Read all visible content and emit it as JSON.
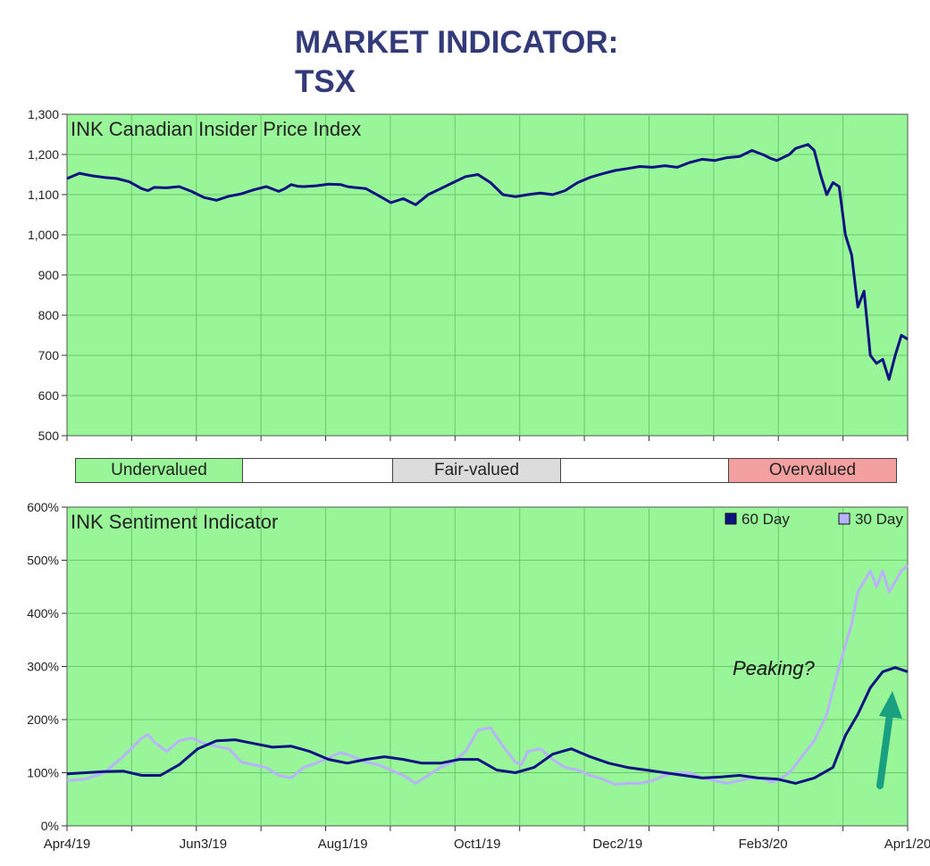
{
  "title": {
    "line1": "MARKET INDICATOR:",
    "line2": "TSX"
  },
  "colors": {
    "plot_bg": "#98f598",
    "grid": "#6cc86c",
    "series_dark": "#0d1380",
    "series_light": "#b9b2ff",
    "arrow": "#19a080",
    "undervalued": "#98f598",
    "fairvalued": "#dcdcdc",
    "overvalued": "#f5a0a0"
  },
  "valuation_band": {
    "undervalued": "Undervalued",
    "fair": "Fair-valued",
    "overvalued": "Overvalued"
  },
  "chart_data": [
    {
      "type": "line",
      "title": "INK Canadian Insider Price Index",
      "ylim": [
        500,
        1300
      ],
      "yticks": [
        "1,300",
        "1,200",
        "1,100",
        "1,000",
        "900",
        "800",
        "700",
        "600",
        "500"
      ],
      "grid": true,
      "series": [
        {
          "x": [
            0,
            4,
            8,
            12,
            16,
            20,
            24,
            26,
            28,
            32,
            36,
            40,
            44,
            48,
            52,
            56,
            60,
            64,
            68,
            70,
            72,
            74,
            76,
            80,
            84,
            88,
            90,
            92,
            96,
            100,
            104,
            108,
            112,
            116,
            120,
            124,
            128,
            132,
            136,
            140,
            144,
            148,
            152,
            156,
            160,
            164,
            168,
            172,
            176,
            180,
            184,
            188,
            192,
            196,
            200,
            204,
            208,
            212,
            216,
            220,
            224,
            226,
            228,
            232,
            234,
            236,
            238,
            240,
            242,
            244,
            246,
            248,
            250,
            252,
            254,
            256,
            258,
            260,
            262,
            264,
            266,
            268,
            270
          ],
          "values": [
            1140,
            1153,
            1147,
            1143,
            1140,
            1132,
            1115,
            1110,
            1118,
            1117,
            1120,
            1108,
            1093,
            1086,
            1096,
            1102,
            1112,
            1120,
            1108,
            1115,
            1125,
            1121,
            1120,
            1122,
            1126,
            1125,
            1120,
            1118,
            1115,
            1098,
            1080,
            1090,
            1075,
            1100,
            1115,
            1130,
            1145,
            1150,
            1130,
            1100,
            1095,
            1100,
            1104,
            1100,
            1110,
            1130,
            1143,
            1152,
            1160,
            1165,
            1170,
            1168,
            1172,
            1168,
            1180,
            1188,
            1185,
            1192,
            1195,
            1210,
            1198,
            1190,
            1185,
            1200,
            1215,
            1220,
            1225,
            1210,
            1150,
            1100,
            1130,
            1120,
            1000,
            950,
            820,
            860,
            700,
            680,
            690,
            640,
            700,
            750,
            740
          ]
        }
      ]
    },
    {
      "type": "line",
      "title": "INK Sentiment Indicator",
      "ylim": [
        0,
        600
      ],
      "yticks": [
        "600%",
        "500%",
        "400%",
        "300%",
        "200%",
        "100%",
        "0%"
      ],
      "xticks": [
        "Apr4/19",
        "Jun3/19",
        "Aug1/19",
        "Oct1/19",
        "Dec2/19",
        "Feb3/20",
        "Apr1/20"
      ],
      "grid": true,
      "annotation": "Peaking?",
      "series": [
        {
          "name": "60 Day",
          "x": [
            0,
            6,
            12,
            18,
            24,
            30,
            36,
            42,
            48,
            54,
            60,
            66,
            72,
            78,
            84,
            90,
            96,
            102,
            108,
            114,
            120,
            126,
            132,
            138,
            144,
            150,
            156,
            162,
            168,
            174,
            180,
            186,
            192,
            198,
            204,
            210,
            216,
            222,
            228,
            234,
            240,
            246,
            250,
            254,
            258,
            262,
            266,
            270
          ],
          "values": [
            98,
            100,
            102,
            103,
            95,
            95,
            115,
            145,
            160,
            162,
            155,
            148,
            150,
            140,
            125,
            118,
            125,
            130,
            125,
            118,
            118,
            125,
            125,
            105,
            100,
            110,
            135,
            145,
            130,
            118,
            110,
            105,
            100,
            95,
            90,
            92,
            95,
            90,
            88,
            80,
            90,
            110,
            170,
            210,
            260,
            290,
            298,
            290
          ]
        },
        {
          "name": "30 Day",
          "x": [
            0,
            6,
            12,
            18,
            24,
            26,
            28,
            32,
            36,
            40,
            44,
            48,
            52,
            56,
            60,
            64,
            68,
            72,
            76,
            80,
            84,
            88,
            92,
            96,
            100,
            104,
            108,
            112,
            116,
            120,
            124,
            128,
            132,
            136,
            140,
            144,
            146,
            148,
            152,
            156,
            160,
            164,
            168,
            172,
            176,
            180,
            184,
            188,
            192,
            196,
            200,
            204,
            208,
            212,
            216,
            220,
            224,
            226,
            228,
            232,
            236,
            240,
            244,
            248,
            252,
            254,
            256,
            258,
            260,
            262,
            264,
            266,
            268,
            270
          ],
          "values": [
            85,
            88,
            100,
            130,
            165,
            172,
            158,
            140,
            160,
            165,
            155,
            150,
            145,
            120,
            115,
            110,
            95,
            90,
            110,
            118,
            128,
            138,
            130,
            120,
            115,
            105,
            95,
            80,
            95,
            110,
            120,
            140,
            180,
            185,
            150,
            120,
            115,
            140,
            145,
            125,
            110,
            105,
            95,
            88,
            78,
            80,
            80,
            85,
            95,
            100,
            100,
            90,
            85,
            80,
            85,
            90,
            88,
            82,
            85,
            100,
            130,
            160,
            210,
            300,
            380,
            440,
            460,
            480,
            450,
            480,
            440,
            460,
            480,
            490
          ]
        }
      ]
    }
  ]
}
